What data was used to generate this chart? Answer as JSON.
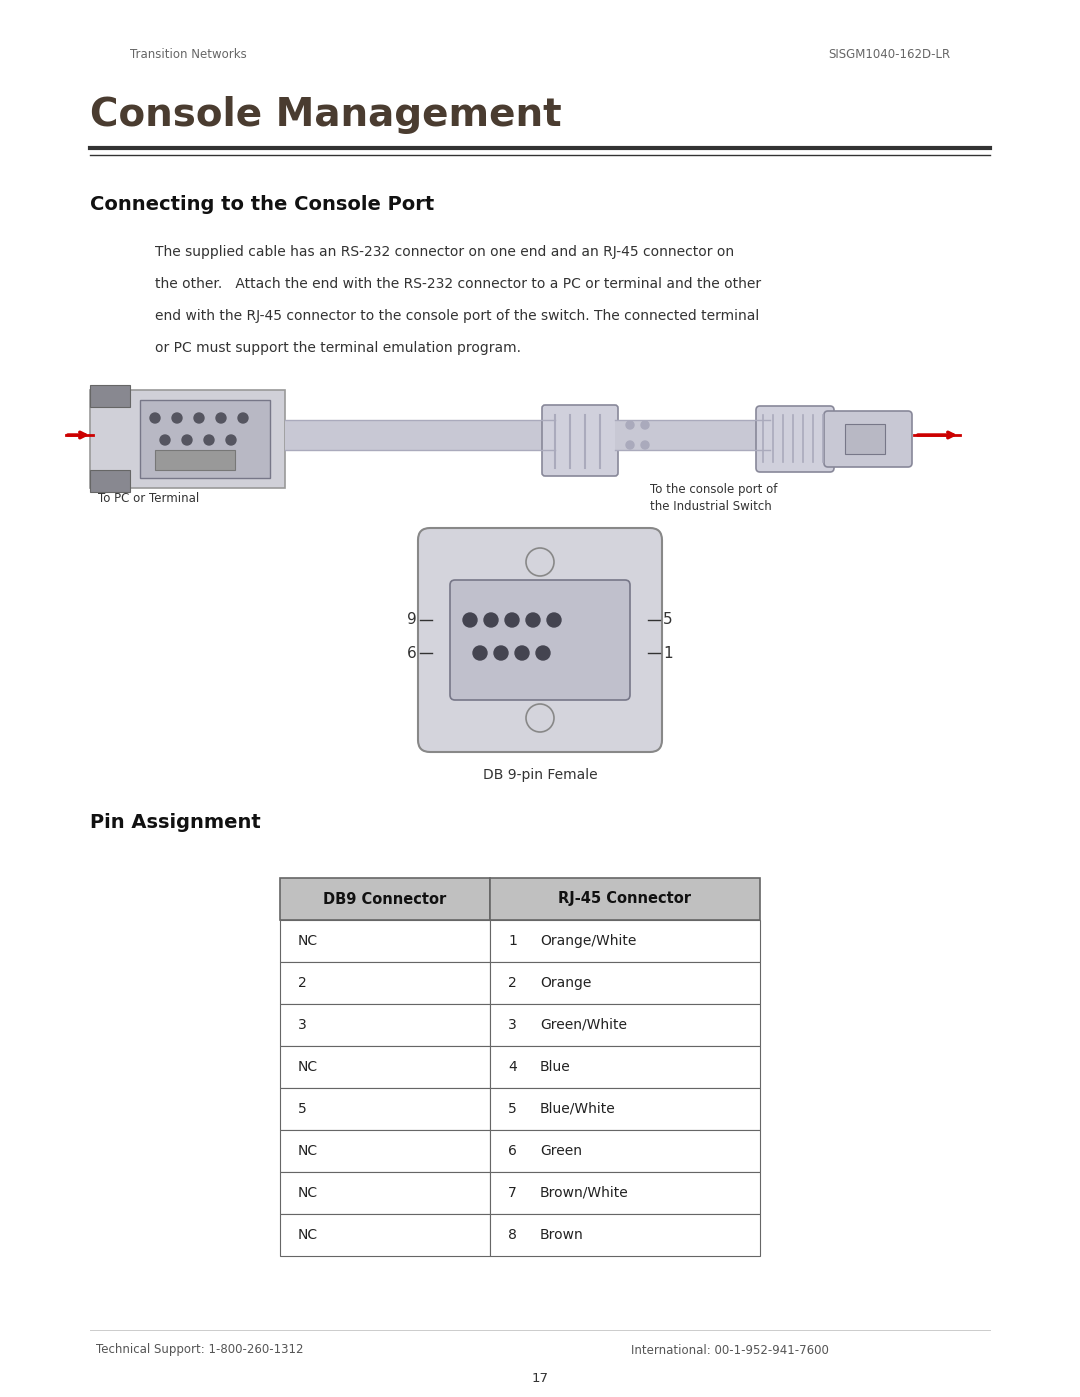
{
  "page_width": 10.8,
  "page_height": 13.97,
  "bg_color": "#ffffff",
  "header_left": "Transition Networks",
  "header_right": "SISGM1040-162D-LR",
  "main_title": "Console Management",
  "section1_title": "Connecting to the Console Port",
  "body_lines": [
    "The supplied cable has an RS-232 connector on one end and an RJ-45 connector on",
    "the other.   Attach the end with the RS-232 connector to a PC or terminal and the other",
    "end with the RJ-45 connector to the console port of the switch. The connected terminal",
    "or PC must support the terminal emulation program."
  ],
  "label_left": "To PC or Terminal",
  "label_right_line1": "To the console port of",
  "label_right_line2": "the Industrial Switch",
  "db9_caption": "DB 9-pin Female",
  "section2_title": "Pin Assignment",
  "table_headers": [
    "DB9 Connector",
    "RJ-45 Connector"
  ],
  "table_rows": [
    [
      "NC",
      "1",
      "Orange/White"
    ],
    [
      "2",
      "2",
      "Orange"
    ],
    [
      "3",
      "3",
      "Green/White"
    ],
    [
      "NC",
      "4",
      "Blue"
    ],
    [
      "5",
      "5",
      "Blue/White"
    ],
    [
      "NC",
      "6",
      "Green"
    ],
    [
      "NC",
      "7",
      "Brown/White"
    ],
    [
      "NC",
      "8",
      "Brown"
    ]
  ],
  "footer_left": "Technical Support: 1-800-260-1312",
  "footer_right": "International: 00-1-952-941-7600",
  "footer_page": "17",
  "title_color": "#4a3c30",
  "section_title_color": "#111111",
  "header_color": "#666666",
  "body_color": "#333333",
  "table_header_bg": "#c0c0c0",
  "table_border_color": "#666666",
  "table_text_color": "#222222",
  "arrow_color": "#cc0000",
  "connector_color": "#ccccd4",
  "cable_color": "#c0c0cc"
}
